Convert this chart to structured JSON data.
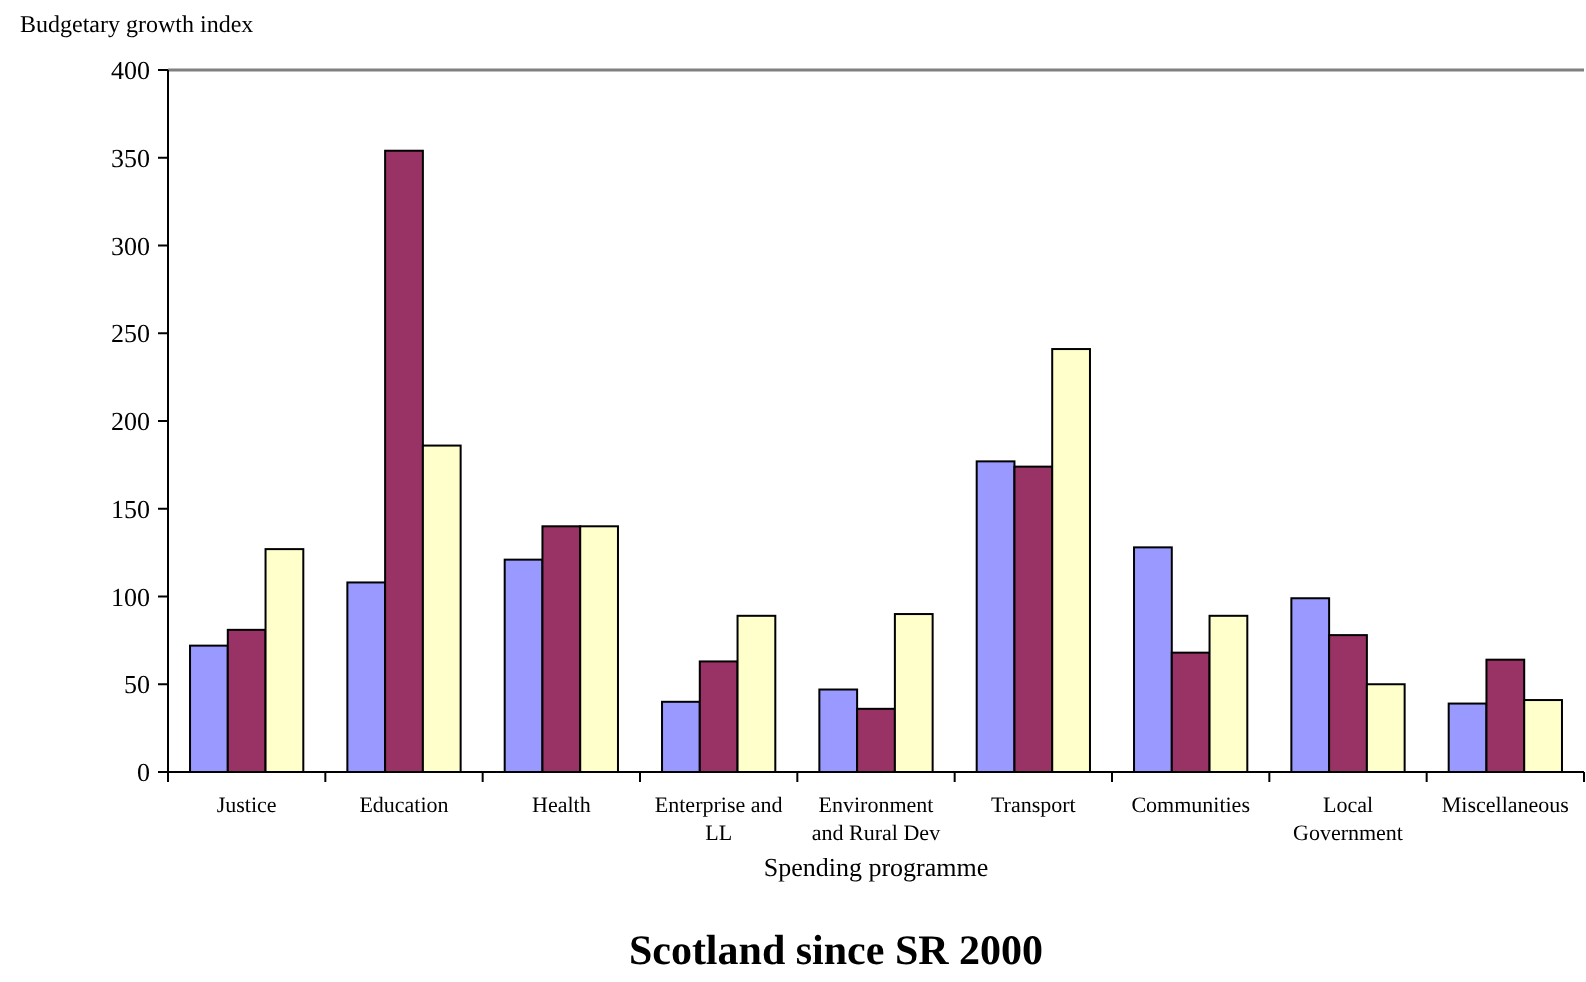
{
  "chart_data": {
    "type": "bar",
    "title": "Scotland since SR 2000",
    "xlabel": "Spending programme",
    "ylabel": "Budgetary growth index",
    "categories": [
      "Justice",
      "Education",
      "Health",
      "Enterprise and LL",
      "Environment and Rural Dev",
      "Transport",
      "Communities",
      "Local Government",
      "Miscellaneous"
    ],
    "series": [
      {
        "color": "#9999ff",
        "values": [
          72,
          108,
          121,
          40,
          47,
          177,
          128,
          99,
          39
        ]
      },
      {
        "color": "#993366",
        "values": [
          81,
          354,
          140,
          63,
          36,
          174,
          68,
          78,
          64
        ]
      },
      {
        "color": "#ffffcc",
        "values": [
          127,
          186,
          140,
          89,
          90,
          241,
          89,
          50,
          41
        ]
      }
    ],
    "ylim": [
      0,
      400
    ],
    "yticks": [
      0,
      50,
      100,
      150,
      200,
      250,
      300,
      350,
      400
    ],
    "grid": false
  }
}
